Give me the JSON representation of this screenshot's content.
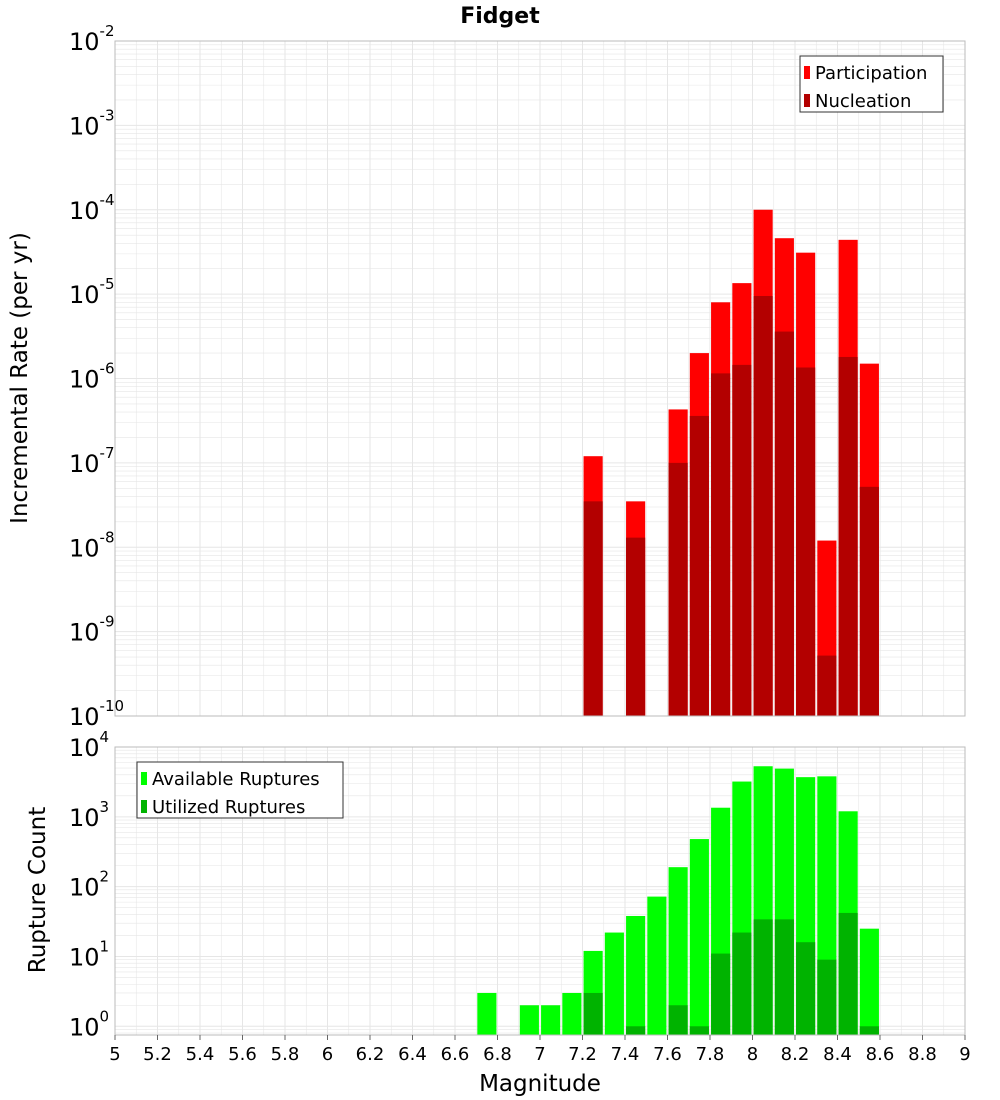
{
  "title": "Fidget",
  "x_axis_label": "Magnitude",
  "x_ticks": [
    "5",
    "5.2",
    "5.4",
    "5.6",
    "5.8",
    "6",
    "6.2",
    "6.4",
    "6.6",
    "6.8",
    "7",
    "7.2",
    "7.4",
    "7.6",
    "7.8",
    "8",
    "8.2",
    "8.4",
    "8.6",
    "8.8",
    "9"
  ],
  "colors": {
    "participation": "#ff0000",
    "nucleation": "#b30000",
    "available": "#00ff00",
    "utilized": "#00b300",
    "grid": "#e6e6e6",
    "border": "#bbbbbb"
  },
  "chart_data": [
    {
      "type": "bar",
      "title": "Fidget",
      "xlabel": "Magnitude",
      "ylabel": "Incremental Rate (per yr)",
      "xlim": [
        5,
        9
      ],
      "ylim": [
        1e-10,
        0.01
      ],
      "yscale": "log",
      "y_tick_exponents": [
        "-2",
        "-3",
        "-4",
        "-5",
        "-6",
        "-7",
        "-8",
        "-9",
        "-10"
      ],
      "bar_width": 0.09,
      "legend": {
        "placement": "top-right",
        "entries": [
          "Participation",
          "Nucleation"
        ]
      },
      "grid": true,
      "x": [
        7.25,
        7.45,
        7.65,
        7.75,
        7.85,
        7.95,
        8.05,
        8.15,
        8.25,
        8.35,
        8.45,
        8.55
      ],
      "series": [
        {
          "name": "Participation",
          "values": [
            1.2e-07,
            3.5e-08,
            4.3e-07,
            2e-06,
            8e-06,
            1.35e-05,
            0.0001,
            4.6e-05,
            3.1e-05,
            1.2e-08,
            4.4e-05,
            1.5e-06
          ]
        },
        {
          "name": "Nucleation",
          "values": [
            3.5e-08,
            1.3e-08,
            1e-07,
            3.6e-07,
            1.15e-06,
            1.45e-06,
            9.5e-06,
            3.6e-06,
            1.35e-06,
            5.2e-10,
            1.8e-06,
            5.2e-08
          ]
        }
      ]
    },
    {
      "type": "bar",
      "xlabel": "Magnitude",
      "ylabel": "Rupture Count",
      "xlim": [
        5,
        9
      ],
      "ylim": [
        0.75,
        10000
      ],
      "yscale": "log",
      "y_tick_exponents": [
        "4",
        "3",
        "2",
        "1",
        "0"
      ],
      "bar_width": 0.09,
      "legend": {
        "placement": "top-left",
        "entries": [
          "Available Ruptures",
          "Utilized Ruptures"
        ]
      },
      "grid": true,
      "x": [
        6.75,
        6.95,
        7.05,
        7.15,
        7.25,
        7.35,
        7.45,
        7.55,
        7.65,
        7.75,
        7.85,
        7.95,
        8.05,
        8.15,
        8.25,
        8.35,
        8.45,
        8.55
      ],
      "series": [
        {
          "name": "Available Ruptures",
          "values": [
            3,
            2,
            2,
            3,
            12,
            22,
            38,
            72,
            190,
            480,
            1350,
            3200,
            5300,
            4900,
            3700,
            3800,
            1200,
            25
          ]
        },
        {
          "name": "Utilized Ruptures",
          "values": [
            0,
            0,
            0,
            0,
            3,
            0,
            1,
            0,
            2,
            1,
            11,
            22,
            34,
            34,
            16,
            9,
            42,
            1
          ]
        }
      ]
    }
  ]
}
